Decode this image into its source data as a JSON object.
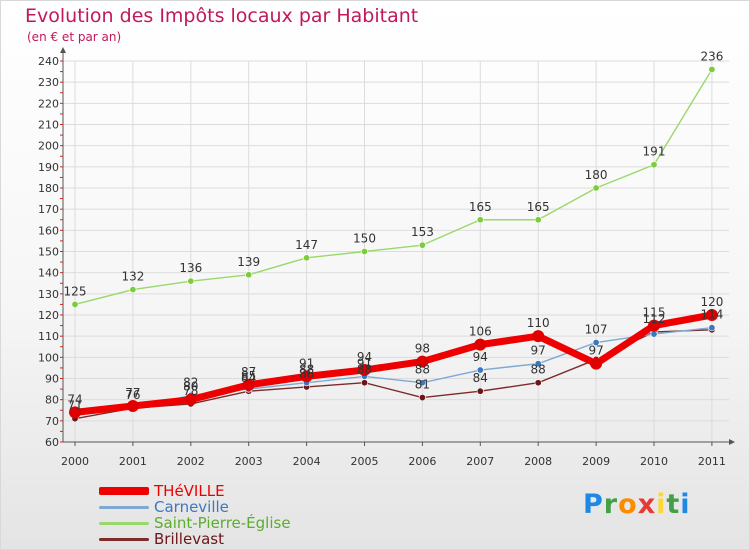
{
  "header": {
    "title": "Evolution des Impôts locaux par Habitant",
    "subtitle": "(en € et par an)"
  },
  "brand": {
    "letters": [
      "P",
      "r",
      "o",
      "x",
      "i",
      "t",
      "i"
    ],
    "colors": [
      "#1e88e5",
      "#43a047",
      "#fb8c00",
      "#e53935",
      "#fdd835",
      "#43a047",
      "#1e88e5"
    ]
  },
  "chart_data": {
    "type": "line",
    "title": "Evolution des Impôts locaux par Habitant",
    "subtitle": "(en € et par an)",
    "xlabel": "",
    "ylabel": "",
    "x": [
      "2000",
      "2001",
      "2002",
      "2003",
      "2004",
      "2005",
      "2006",
      "2007",
      "2008",
      "2009",
      "2010",
      "2011"
    ],
    "ylim": [
      60,
      240
    ],
    "yticks": [
      60,
      70,
      80,
      90,
      100,
      110,
      120,
      130,
      140,
      150,
      160,
      170,
      180,
      190,
      200,
      210,
      220,
      230,
      240
    ],
    "grid": true,
    "legend_position": "bottom-left",
    "series": [
      {
        "name": "Saint-Pierre-Église",
        "color": "#99d86b",
        "marker": "#7ccc3d",
        "width": 1.4,
        "values": [
          125,
          132,
          136,
          139,
          147,
          150,
          153,
          165,
          165,
          180,
          191,
          236
        ],
        "labels": true
      },
      {
        "name": "Brillevast",
        "color": "#7d2b2b",
        "marker": "#6b1717",
        "width": 1.4,
        "values": [
          71,
          76,
          78,
          84,
          86,
          88,
          81,
          84,
          88,
          99,
          112,
          113
        ],
        "labels": true
      },
      {
        "name": "Carneville",
        "color": "#7ea9d2",
        "marker": "#3c78c0",
        "width": 1.4,
        "values": [
          74,
          76,
          82,
          85,
          88,
          91,
          88,
          94,
          97,
          107,
          111,
          114
        ],
        "labels": true
      },
      {
        "name": "THéVILLE",
        "color": "#ee0000",
        "marker": "#e00000",
        "width": 7,
        "values": [
          74,
          77,
          80,
          87,
          91,
          94,
          98,
          106,
          110,
          97,
          115,
          120
        ],
        "labels": true
      }
    ],
    "extra_labels": [
      {
        "x": "2000",
        "text": "74"
      },
      {
        "x": "2000",
        "text": "71"
      },
      {
        "x": "2001",
        "text": "77"
      },
      {
        "x": "2001",
        "text": "76"
      },
      {
        "x": "2002",
        "text": "82"
      },
      {
        "x": "2002",
        "text": "80"
      },
      {
        "x": "2002",
        "text": "78"
      },
      {
        "x": "2003",
        "text": "87"
      },
      {
        "x": "2003",
        "text": "85"
      },
      {
        "x": "2003",
        "text": "84"
      },
      {
        "x": "2004",
        "text": "91"
      },
      {
        "x": "2004",
        "text": "88"
      },
      {
        "x": "2004",
        "text": "86"
      },
      {
        "x": "2005",
        "text": "94"
      },
      {
        "x": "2005",
        "text": "91"
      },
      {
        "x": "2005",
        "text": "88"
      },
      {
        "x": "2006",
        "text": "98"
      },
      {
        "x": "2006",
        "text": "88"
      },
      {
        "x": "2006",
        "text": "81"
      },
      {
        "x": "2007",
        "text": "106"
      },
      {
        "x": "2007",
        "text": "94"
      },
      {
        "x": "2007",
        "text": "84"
      },
      {
        "x": "2008",
        "text": "110"
      },
      {
        "x": "2008",
        "text": "97"
      },
      {
        "x": "2008",
        "text": "88"
      },
      {
        "x": "2009",
        "text": "107"
      },
      {
        "x": "2009",
        "text": "97"
      },
      {
        "x": "2010",
        "text": "115"
      },
      {
        "x": "2010",
        "text": "112"
      },
      {
        "x": "2011",
        "text": "120"
      },
      {
        "x": "2011",
        "text": "114"
      }
    ],
    "legend": [
      {
        "name": "THéVILLE",
        "color": "#ee0000",
        "text_color": "#ee0000",
        "thick": true
      },
      {
        "name": "Carneville",
        "color": "#7ea9d2",
        "text_color": "#3c78c0",
        "thick": false
      },
      {
        "name": "Saint-Pierre-Église",
        "color": "#99d86b",
        "text_color": "#5aae2a",
        "thick": false
      },
      {
        "name": "Brillevast",
        "color": "#7d2b2b",
        "text_color": "#6b1717",
        "thick": false
      }
    ]
  }
}
